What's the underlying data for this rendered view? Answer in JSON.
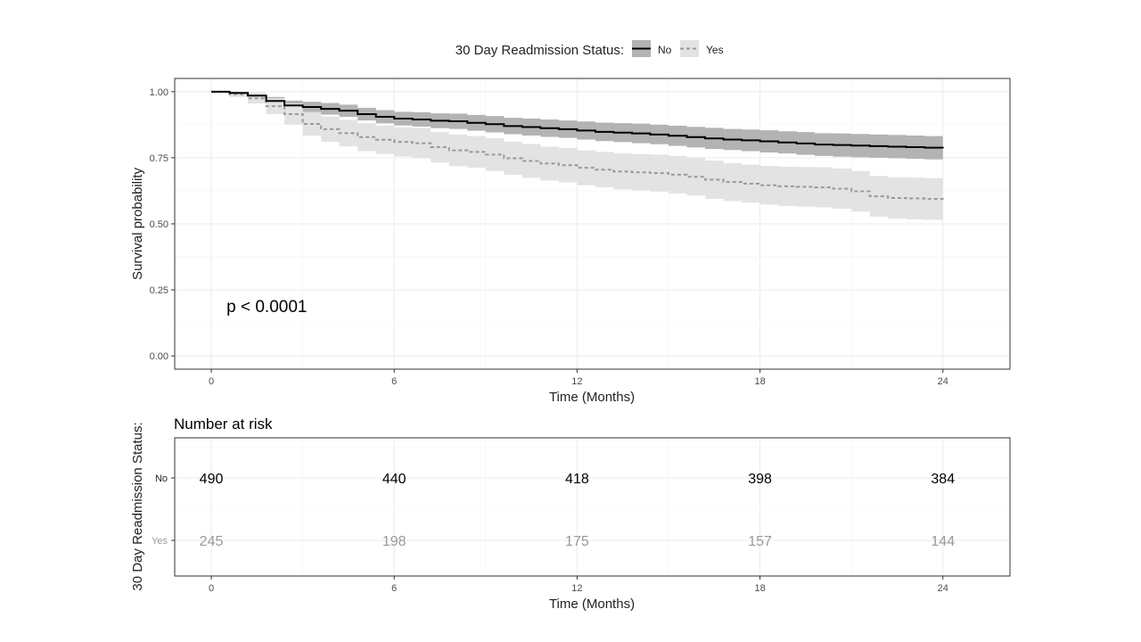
{
  "chart_data": [
    {
      "type": "line",
      "subtype": "kaplan-meier",
      "title": "",
      "xlabel": "Time (Months)",
      "ylabel": "Survival probability",
      "xlim": [
        -1.2,
        26.2
      ],
      "ylim": [
        -0.05,
        1.05
      ],
      "xticks": [
        0,
        6,
        12,
        18,
        24
      ],
      "xtick_labels": [
        "0",
        "6",
        "12",
        "18",
        "24"
      ],
      "yticks": [
        0,
        0.25,
        0.5,
        0.75,
        1
      ],
      "ytick_labels": [
        "0.00",
        "0.25",
        "0.50",
        "0.75",
        "1.00"
      ],
      "grid": true,
      "legend": {
        "title": "30 Day Readmission Status:",
        "position": "top",
        "entries": [
          "No",
          "Yes"
        ]
      },
      "annotations": [
        {
          "text": "p < 0.0001",
          "x": 0.5,
          "y": 0.19
        }
      ],
      "series": [
        {
          "name": "No",
          "color": "#000000",
          "ribbon_color": "#b3b3b3",
          "line_style": "solid",
          "x": [
            0,
            0.6,
            1.2,
            1.8,
            2.4,
            3,
            3.6,
            4.2,
            4.8,
            5.4,
            6,
            6.6,
            7.2,
            7.8,
            8.4,
            9,
            9.6,
            10.2,
            10.8,
            11.4,
            12,
            12.6,
            13.2,
            13.8,
            14.4,
            15,
            15.6,
            16.2,
            16.8,
            17.4,
            18,
            18.6,
            19.2,
            19.8,
            20.4,
            21,
            21.6,
            22.2,
            22.8,
            23.4,
            24
          ],
          "y": [
            1,
            0.995,
            0.985,
            0.965,
            0.948,
            0.942,
            0.935,
            0.928,
            0.915,
            0.905,
            0.898,
            0.895,
            0.89,
            0.888,
            0.882,
            0.877,
            0.87,
            0.866,
            0.862,
            0.858,
            0.853,
            0.848,
            0.845,
            0.842,
            0.838,
            0.833,
            0.828,
            0.823,
            0.819,
            0.816,
            0.812,
            0.808,
            0.804,
            0.8,
            0.798,
            0.796,
            0.794,
            0.792,
            0.79,
            0.788,
            0.786
          ],
          "lower": [
            1,
            0.99,
            0.975,
            0.95,
            0.93,
            0.922,
            0.913,
            0.905,
            0.891,
            0.88,
            0.872,
            0.868,
            0.862,
            0.859,
            0.852,
            0.846,
            0.839,
            0.834,
            0.829,
            0.825,
            0.819,
            0.813,
            0.809,
            0.805,
            0.801,
            0.795,
            0.789,
            0.783,
            0.779,
            0.775,
            0.77,
            0.766,
            0.761,
            0.757,
            0.754,
            0.752,
            0.75,
            0.748,
            0.746,
            0.744,
            0.742
          ],
          "upper": [
            1,
            1,
            0.995,
            0.98,
            0.966,
            0.962,
            0.957,
            0.951,
            0.939,
            0.93,
            0.924,
            0.922,
            0.918,
            0.917,
            0.912,
            0.908,
            0.901,
            0.898,
            0.895,
            0.891,
            0.887,
            0.883,
            0.881,
            0.879,
            0.875,
            0.871,
            0.867,
            0.863,
            0.859,
            0.857,
            0.854,
            0.85,
            0.847,
            0.843,
            0.842,
            0.84,
            0.838,
            0.836,
            0.834,
            0.832,
            0.83
          ]
        },
        {
          "name": "Yes",
          "color": "#999999",
          "ribbon_color": "#e3e3e3",
          "line_style": "dashed",
          "x": [
            0,
            0.6,
            1.2,
            1.8,
            2.4,
            3,
            3.6,
            4.2,
            4.8,
            5.4,
            6,
            6.6,
            7.2,
            7.8,
            8.4,
            9,
            9.6,
            10.2,
            10.8,
            11.4,
            12,
            12.6,
            13.2,
            13.8,
            14.4,
            15,
            15.6,
            16.2,
            16.8,
            17.4,
            18,
            18.6,
            19.2,
            19.8,
            20.4,
            21,
            21.6,
            22.2,
            22.8,
            23.4,
            24
          ],
          "y": [
            1,
            0.99,
            0.975,
            0.945,
            0.915,
            0.878,
            0.858,
            0.843,
            0.828,
            0.818,
            0.81,
            0.805,
            0.79,
            0.778,
            0.772,
            0.762,
            0.748,
            0.738,
            0.728,
            0.722,
            0.712,
            0.705,
            0.698,
            0.695,
            0.692,
            0.686,
            0.678,
            0.667,
            0.658,
            0.652,
            0.646,
            0.642,
            0.64,
            0.638,
            0.633,
            0.623,
            0.604,
            0.598,
            0.596,
            0.594,
            0.592
          ],
          "lower": [
            1,
            0.98,
            0.955,
            0.915,
            0.875,
            0.833,
            0.81,
            0.793,
            0.775,
            0.764,
            0.755,
            0.748,
            0.732,
            0.718,
            0.712,
            0.7,
            0.685,
            0.674,
            0.664,
            0.657,
            0.646,
            0.638,
            0.63,
            0.626,
            0.622,
            0.615,
            0.607,
            0.595,
            0.586,
            0.58,
            0.573,
            0.568,
            0.565,
            0.562,
            0.557,
            0.546,
            0.527,
            0.52,
            0.517,
            0.515,
            0.512
          ],
          "upper": [
            1,
            1,
            0.995,
            0.975,
            0.955,
            0.923,
            0.906,
            0.893,
            0.881,
            0.872,
            0.865,
            0.862,
            0.848,
            0.838,
            0.832,
            0.824,
            0.811,
            0.802,
            0.792,
            0.787,
            0.778,
            0.772,
            0.766,
            0.764,
            0.762,
            0.757,
            0.749,
            0.739,
            0.73,
            0.724,
            0.719,
            0.716,
            0.715,
            0.714,
            0.709,
            0.7,
            0.681,
            0.676,
            0.675,
            0.673,
            0.672
          ]
        }
      ]
    },
    {
      "type": "table",
      "title": "Number at risk",
      "xlabel": "Time (Months)",
      "ylabel": "30 Day Readmission Status:",
      "xlim": [
        -1.2,
        26.2
      ],
      "xticks": [
        0,
        6,
        12,
        18,
        24
      ],
      "xtick_labels": [
        "0",
        "6",
        "12",
        "18",
        "24"
      ],
      "grid": true,
      "rows": [
        {
          "name": "No",
          "color": "#000000",
          "values": [
            490,
            440,
            418,
            398,
            384
          ]
        },
        {
          "name": "Yes",
          "color": "#999999",
          "values": [
            245,
            198,
            175,
            157,
            144
          ]
        }
      ]
    }
  ]
}
